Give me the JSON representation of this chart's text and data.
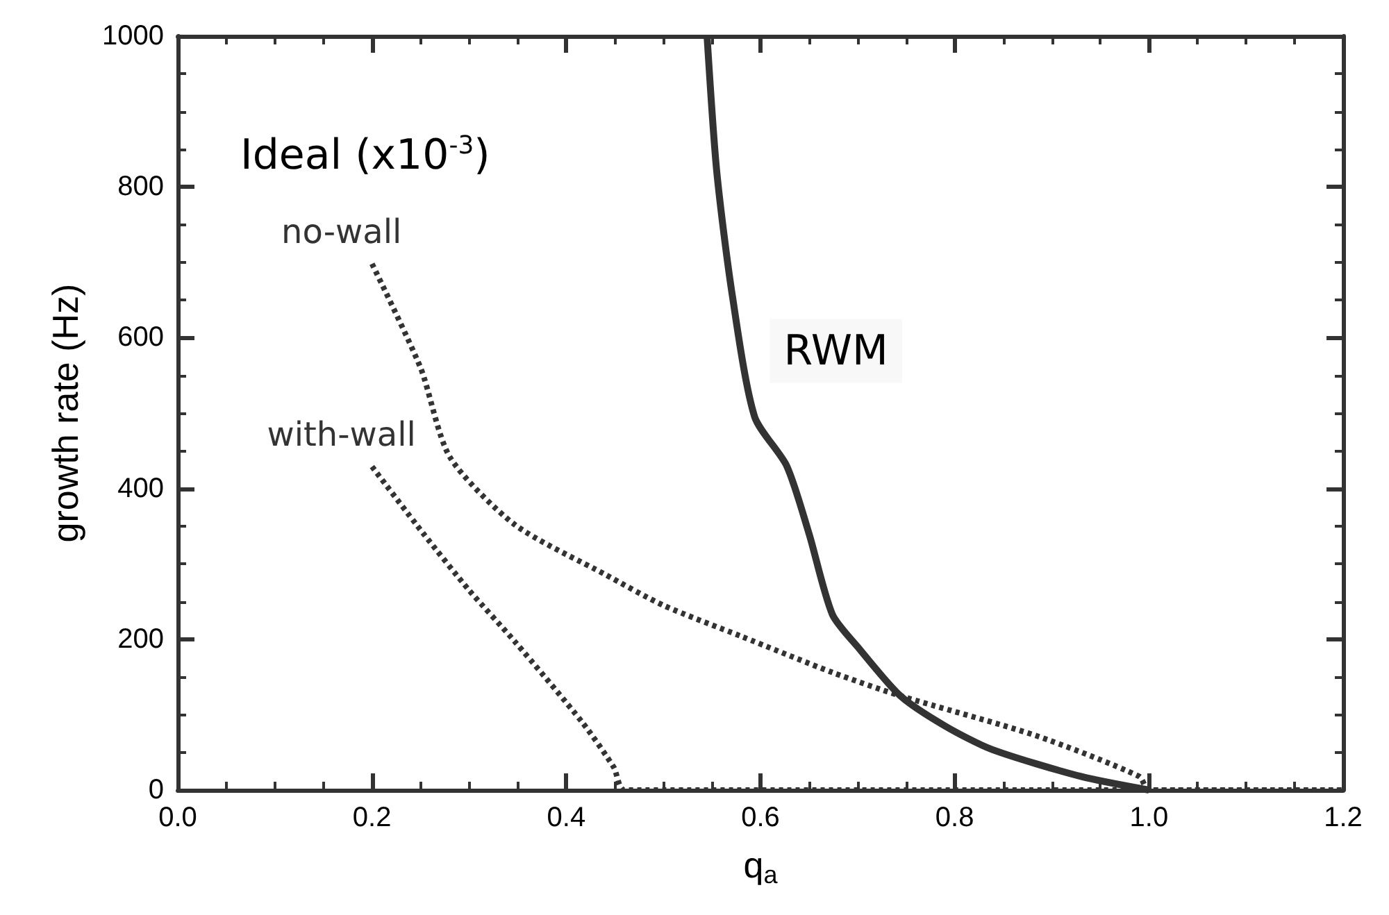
{
  "chart_data": {
    "type": "line",
    "xlabel": "q$_{a}$",
    "ylabel": "growth rate (Hz)",
    "annotations": [
      "Ideal (x10$^{-3}$)"
    ],
    "xlim": [
      0,
      1.2
    ],
    "xticks": [
      {
        "value": 0,
        "label": "0.0"
      },
      0.2,
      0.4,
      0.6,
      0.8,
      {
        "value": 1,
        "label": "1.0"
      },
      1.2
    ],
    "ylim": [
      0,
      1000
    ],
    "yticks": [
      0,
      200,
      400,
      600,
      800,
      1000
    ],
    "grid": false,
    "legend": false,
    "series": [
      {
        "name": "no-wall",
        "color": "#333333",
        "line_style": "dotted",
        "x": [
          0.2,
          0.25,
          0.28,
          0.347,
          0.44,
          0.5,
          0.58,
          0.674,
          0.744,
          0.884,
          0.99,
          1.0,
          1.2
        ],
        "values": [
          698,
          560,
          442,
          352,
          286,
          245,
          204,
          156,
          125,
          72,
          18,
          0,
          0
        ]
      },
      {
        "name": "with-wall",
        "color": "#333333",
        "line_style": "dotted",
        "x": [
          0.2,
          0.253,
          0.3,
          0.347,
          0.417,
          0.449,
          0.46,
          1.2
        ],
        "values": [
          429,
          340,
          265,
          197,
          89,
          30,
          0,
          0
        ]
      },
      {
        "name": "RWM",
        "color": "#333333",
        "line_style": "solid",
        "x": [
          0.545,
          0.555,
          0.571,
          0.594,
          0.627,
          0.65,
          0.674,
          0.7,
          0.744,
          0.79,
          0.838,
          0.93,
          1.0
        ],
        "values": [
          1000,
          820,
          656,
          495,
          430,
          340,
          233,
          190,
          125,
          85,
          54,
          18,
          0
        ]
      }
    ]
  }
}
